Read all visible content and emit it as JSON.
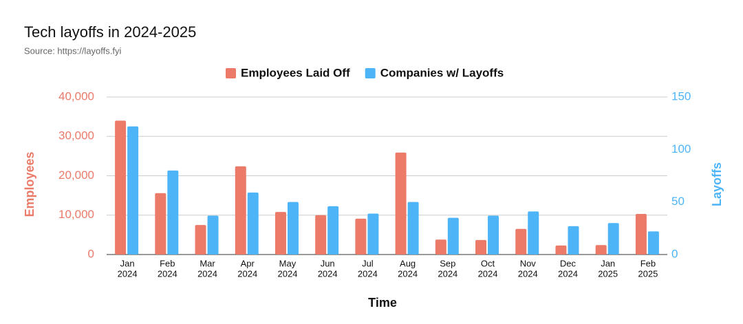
{
  "chart_data": {
    "type": "bar",
    "title": "Tech layoffs in 2024-2025",
    "subtitle": "Source: https://layoffs.fyi",
    "x_label": "Time",
    "y_label": "Employees",
    "y2_label": "Layoffs",
    "categories": [
      [
        "Jan",
        "2024"
      ],
      [
        "Feb",
        "2024"
      ],
      [
        "Mar",
        "2024"
      ],
      [
        "Apr",
        "2024"
      ],
      [
        "May",
        "2024"
      ],
      [
        "Jun",
        "2024"
      ],
      [
        "Jul",
        "2024"
      ],
      [
        "Aug",
        "2024"
      ],
      [
        "Sep",
        "2024"
      ],
      [
        "Oct",
        "2024"
      ],
      [
        "Nov",
        "2024"
      ],
      [
        "Dec",
        "2024"
      ],
      [
        "Jan",
        "2025"
      ],
      [
        "Feb",
        "2025"
      ]
    ],
    "series": [
      {
        "name": "Employees Laid Off",
        "color": "#ec7a69",
        "values": [
          34000,
          15600,
          7500,
          22400,
          10800,
          10000,
          9100,
          25900,
          3800,
          3700,
          6500,
          2300,
          2400,
          10300
        ]
      },
      {
        "name": "Companies w/ Layoffs",
        "color": "#4db5f7",
        "axis": "y2",
        "values": [
          122,
          80,
          37,
          59,
          50,
          46,
          39,
          50,
          35,
          37,
          41,
          27,
          30,
          22
        ]
      }
    ],
    "ylim": [
      0,
      40000
    ],
    "yticks": [
      0,
      {
        "value": 10000,
        "label": "10,000"
      },
      {
        "value": 20000,
        "label": "20,000"
      },
      {
        "value": 30000,
        "label": "30,000"
      },
      {
        "value": 40000,
        "label": "40,000"
      }
    ],
    "y2lim": [
      0,
      150
    ],
    "y2ticks": [
      0,
      50,
      100,
      150
    ],
    "grid": true,
    "legend": "top"
  }
}
